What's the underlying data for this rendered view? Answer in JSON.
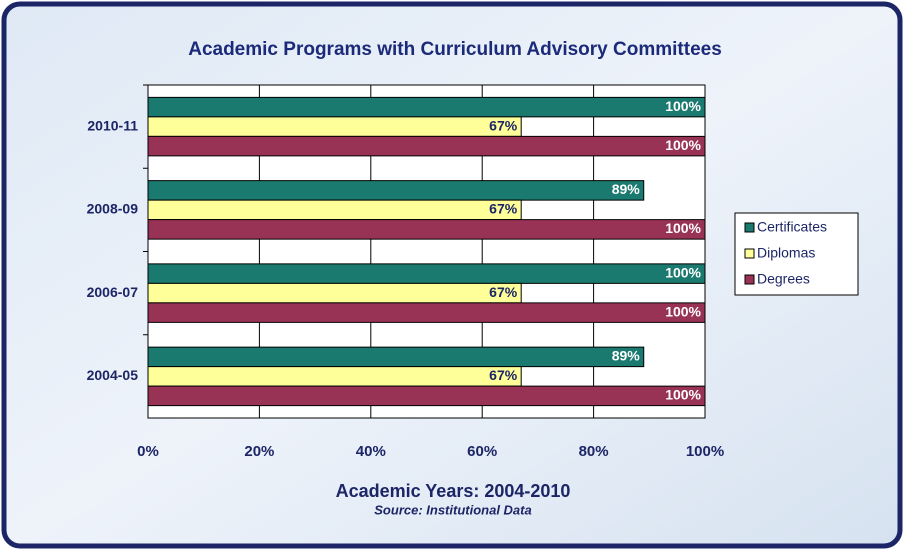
{
  "chart_data": {
    "type": "bar",
    "orientation": "horizontal",
    "title": "Academic Programs with Curriculum Advisory Committees",
    "x_axis_label": "Academic Years: 2004-2010",
    "subtitle": "Source: Institutional Data",
    "categories": [
      "2004-05",
      "2006-07",
      "2008-09",
      "2010-11"
    ],
    "series": [
      {
        "name": "Certificates",
        "color": "#1b7a6f",
        "values": [
          89,
          100,
          89,
          100
        ],
        "value_labels": [
          "89%",
          "100%",
          "89%",
          "100%"
        ]
      },
      {
        "name": "Diplomas",
        "color": "#ffff99",
        "values": [
          67,
          67,
          67,
          67
        ],
        "value_labels": [
          "67%",
          "67%",
          "67%",
          "67%"
        ]
      },
      {
        "name": "Degrees",
        "color": "#993355",
        "values": [
          100,
          100,
          100,
          100
        ],
        "value_labels": [
          "100%",
          "100%",
          "100%",
          "100%"
        ]
      }
    ],
    "xlim": [
      0,
      100
    ],
    "xticks": [
      {
        "value": 0,
        "label": "0%"
      },
      {
        "value": 20,
        "label": "20%"
      },
      {
        "value": 40,
        "label": "40%"
      },
      {
        "value": 60,
        "label": "60%"
      },
      {
        "value": 80,
        "label": "80%"
      },
      {
        "value": 100,
        "label": "100%"
      }
    ],
    "grid": true,
    "legend": "right"
  }
}
